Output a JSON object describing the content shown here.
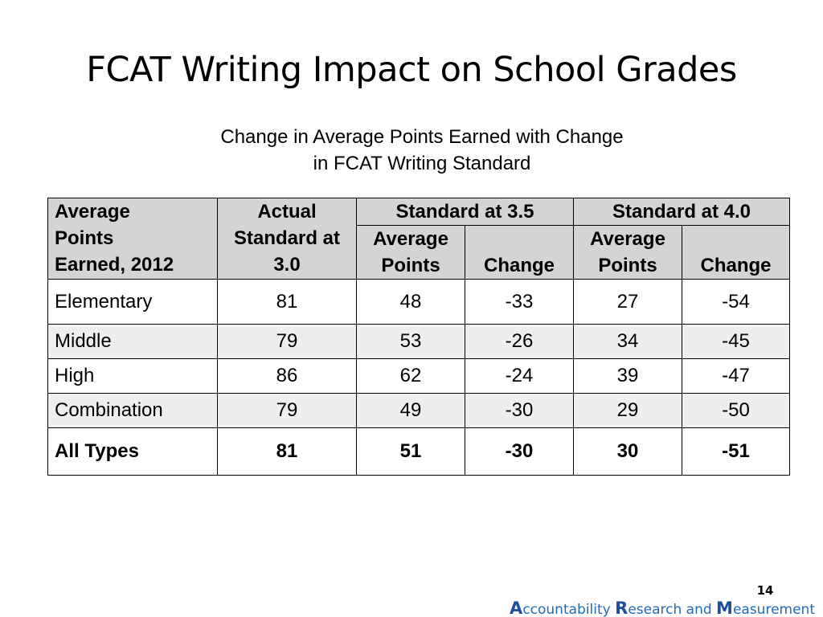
{
  "slide": {
    "title": "FCAT Writing Impact on School Grades",
    "subtitle_line1": "Change in Average Points Earned with Change",
    "subtitle_line2": "in FCAT Writing Standard",
    "page_number": "14"
  },
  "table": {
    "header": {
      "col0": [
        "Average",
        "Points",
        "Earned, 2012"
      ],
      "col1": [
        "Actual",
        "Standard at",
        "3.0"
      ],
      "group1": "Standard at 3.5",
      "group2": "Standard at 4.0",
      "sub_avg": [
        "Average",
        "Points"
      ],
      "sub_change": "Change"
    },
    "rows": [
      [
        "Elementary",
        "81",
        "48",
        "-33",
        "27",
        "-54"
      ],
      [
        "Middle",
        "79",
        "53",
        "-26",
        "34",
        "-45"
      ],
      [
        "High",
        "86",
        "62",
        "-24",
        "39",
        "-47"
      ],
      [
        "Combination",
        "79",
        "49",
        "-30",
        "29",
        "-50"
      ],
      [
        "All Types",
        "81",
        "51",
        "-30",
        "30",
        "-51"
      ]
    ]
  },
  "footer": {
    "a_cap": "A",
    "a_rest": "ccountability ",
    "r_cap": "R",
    "r_rest": "esearch and ",
    "m_cap": "M",
    "m_rest": "easurement"
  },
  "colors": {
    "header_bg": "#d4d4d4",
    "alt_row_bg": "#eeeeee",
    "brand_blue": "#1f6bb5"
  }
}
